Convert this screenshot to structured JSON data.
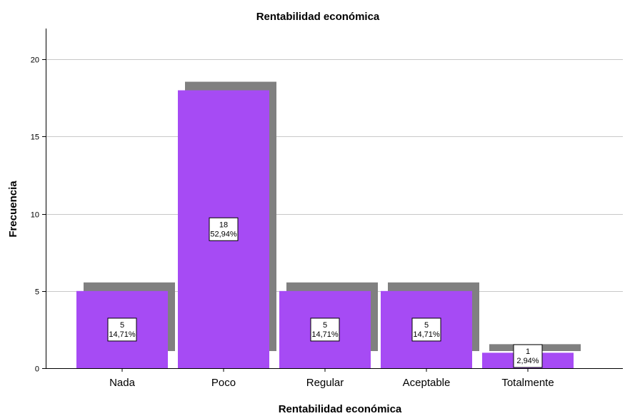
{
  "chart_data": {
    "type": "bar",
    "title": "Rentabilidad económica",
    "xlabel": "Rentabilidad económica",
    "ylabel": "Frecuencia",
    "categories": [
      "Nada",
      "Poco",
      "Regular",
      "Aceptable",
      "Totalmente"
    ],
    "values": [
      5,
      18,
      5,
      5,
      1
    ],
    "percent_labels": [
      "14,71%",
      "52,94%",
      "14,71%",
      "14,71%",
      "2,94%"
    ],
    "ylim": [
      0,
      22
    ],
    "yticks": [
      0,
      5,
      10,
      15,
      20
    ],
    "grid": true,
    "bar_color": "#a64bf4",
    "shadow_color": "#808080",
    "grid_color": "#c8c8c8"
  }
}
